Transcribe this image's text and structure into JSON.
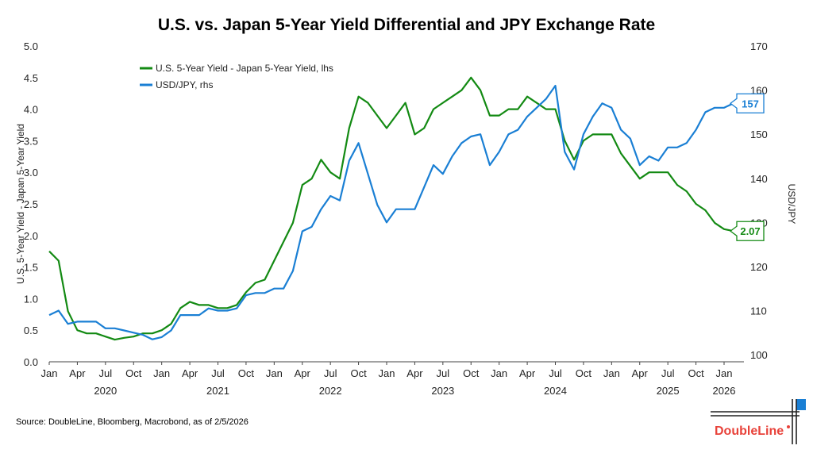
{
  "chart_data": {
    "type": "line",
    "title": "U.S. vs. Japan 5-Year Yield Differential and JPY Exchange Rate",
    "ylabel_left": "U.S. 5-Year Yield - Japan 5-Year Yield",
    "ylabel_right": "USD/JPY",
    "ylim_left": [
      0,
      5
    ],
    "ylim_right": [
      98.4,
      170
    ],
    "yticks_left": [
      "0.0",
      "0.5",
      "1.0",
      "1.5",
      "2.0",
      "2.5",
      "3.0",
      "3.5",
      "4.0",
      "4.5",
      "5.0"
    ],
    "yticks_right": [
      100,
      110,
      120,
      130,
      140,
      150,
      160,
      170
    ],
    "xticks_months": [
      "Jan",
      "Apr",
      "Jul",
      "Oct"
    ],
    "xticks_years": [
      "2020",
      "2021",
      "2022",
      "2023",
      "2024",
      "2025",
      "2026"
    ],
    "legend_placement": "top-left",
    "x": [
      "2020-01",
      "2020-02",
      "2020-03",
      "2020-04",
      "2020-05",
      "2020-06",
      "2020-07",
      "2020-08",
      "2020-09",
      "2020-10",
      "2020-11",
      "2020-12",
      "2021-01",
      "2021-02",
      "2021-03",
      "2021-04",
      "2021-05",
      "2021-06",
      "2021-07",
      "2021-08",
      "2021-09",
      "2021-10",
      "2021-11",
      "2021-12",
      "2022-01",
      "2022-02",
      "2022-03",
      "2022-04",
      "2022-05",
      "2022-06",
      "2022-07",
      "2022-08",
      "2022-09",
      "2022-10",
      "2022-11",
      "2022-12",
      "2023-01",
      "2023-02",
      "2023-03",
      "2023-04",
      "2023-05",
      "2023-06",
      "2023-07",
      "2023-08",
      "2023-09",
      "2023-10",
      "2023-11",
      "2023-12",
      "2024-01",
      "2024-02",
      "2024-03",
      "2024-04",
      "2024-05",
      "2024-06",
      "2024-07",
      "2024-08",
      "2024-09",
      "2024-10",
      "2024-11",
      "2024-12",
      "2025-01",
      "2025-02",
      "2025-03",
      "2025-04",
      "2025-05",
      "2025-06",
      "2025-07",
      "2025-08",
      "2025-09",
      "2025-10",
      "2025-11",
      "2025-12",
      "2026-01",
      "2026-02"
    ],
    "series": [
      {
        "name": "U.S. 5-Year Yield - Japan 5-Year Yield, lhs",
        "axis": "left",
        "color": "#138a13",
        "end_label": "2.07",
        "values": [
          1.75,
          1.6,
          0.8,
          0.5,
          0.45,
          0.45,
          0.4,
          0.35,
          0.38,
          0.4,
          0.45,
          0.45,
          0.5,
          0.6,
          0.85,
          0.95,
          0.9,
          0.9,
          0.85,
          0.85,
          0.9,
          1.1,
          1.25,
          1.3,
          1.6,
          1.9,
          2.2,
          2.8,
          2.9,
          3.2,
          3.0,
          2.9,
          3.7,
          4.2,
          4.1,
          3.9,
          3.7,
          3.9,
          4.1,
          3.6,
          3.7,
          4.0,
          4.1,
          4.2,
          4.3,
          4.5,
          4.3,
          3.9,
          3.9,
          4.0,
          4.0,
          4.2,
          4.1,
          4.0,
          4.0,
          3.5,
          3.2,
          3.5,
          3.6,
          3.6,
          3.6,
          3.3,
          3.1,
          2.9,
          3.0,
          3.0,
          3.0,
          2.8,
          2.7,
          2.5,
          2.4,
          2.2,
          2.1,
          2.07
        ]
      },
      {
        "name": "USD/JPY, rhs",
        "axis": "right",
        "color": "#1a7fd4",
        "end_label": "157",
        "values": [
          109,
          110,
          107,
          107.5,
          107.5,
          107.5,
          106,
          106,
          105.5,
          105,
          104.5,
          103.5,
          104,
          105.5,
          109,
          109,
          109,
          110.5,
          110,
          110,
          110.5,
          113.5,
          114,
          114,
          115,
          115,
          119,
          128,
          129,
          133,
          136,
          135,
          144,
          148,
          141,
          134,
          130,
          133,
          133,
          133,
          138,
          143,
          141,
          145,
          148,
          149.5,
          150,
          143,
          146,
          150,
          151,
          154,
          156,
          158,
          161,
          146,
          142,
          150,
          154,
          157,
          156,
          151,
          149,
          143,
          145,
          144,
          147,
          147,
          148,
          151,
          155,
          156,
          156,
          157
        ]
      }
    ]
  },
  "source": "Source: DoubleLine, Bloomberg, Macrobond, as of 2/5/2026",
  "logo": {
    "text": "DoubleLine",
    "color": "#e8423a",
    "accent": "#1a7fd4"
  }
}
